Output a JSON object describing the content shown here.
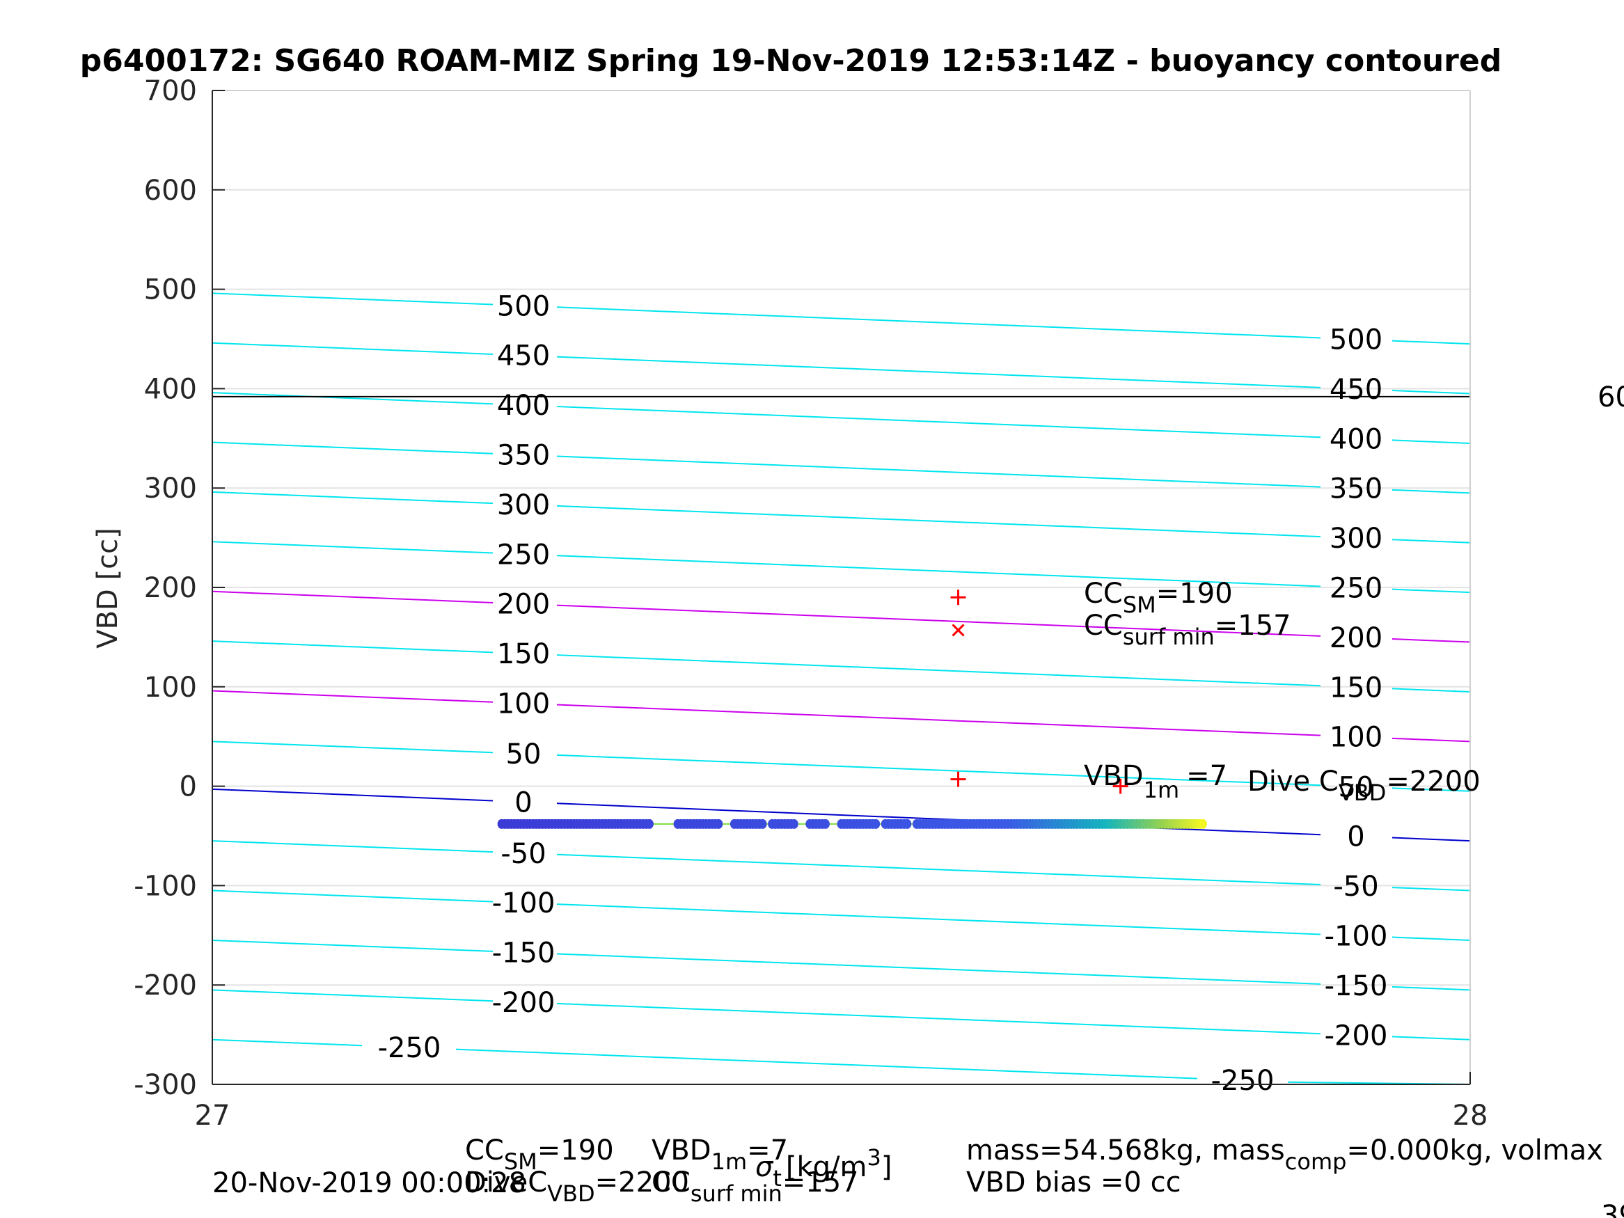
{
  "chart_data": {
    "type": "line",
    "title": "p6400172: SG640 ROAM-MIZ Spring 19-Nov-2019 12:53:14Z - buoyancy contoured",
    "ylabel": "VBD [cc]",
    "xlabel": "",
    "xlim": [
      27,
      28
    ],
    "ylim": [
      -300,
      700
    ],
    "xticks": [
      "27",
      "28"
    ],
    "yticks": [
      "-300",
      "-200",
      "-100",
      "0",
      "100",
      "200",
      "300",
      "400",
      "500",
      "600",
      "700"
    ],
    "grid": true,
    "contours": [
      {
        "level": -250,
        "y_left": -255,
        "y_right": -305,
        "color": "#00e5ee",
        "label": "-250"
      },
      {
        "level": -200,
        "y_left": -205,
        "y_right": -255,
        "color": "#00e5ee",
        "label": "-200"
      },
      {
        "level": -150,
        "y_left": -155,
        "y_right": -205,
        "color": "#00e5ee",
        "label": "-150"
      },
      {
        "level": -100,
        "y_left": -105,
        "y_right": -155,
        "color": "#00e5ee",
        "label": "-100"
      },
      {
        "level": -50,
        "y_left": -55,
        "y_right": -105,
        "color": "#00e5ee",
        "label": "-50"
      },
      {
        "level": 0,
        "y_left": -3,
        "y_right": -55,
        "color": "#0000cc",
        "label": "0"
      },
      {
        "level": 50,
        "y_left": 45,
        "y_right": -5,
        "color": "#00e5ee",
        "label": "50"
      },
      {
        "level": 100,
        "y_left": 96,
        "y_right": 45,
        "color": "#cc00ee",
        "label": "100"
      },
      {
        "level": 150,
        "y_left": 146,
        "y_right": 95,
        "color": "#00e5ee",
        "label": "150"
      },
      {
        "level": 200,
        "y_left": 196,
        "y_right": 145,
        "color": "#cc00ee",
        "label": "200"
      },
      {
        "level": 250,
        "y_left": 246,
        "y_right": 195,
        "color": "#00e5ee",
        "label": "250"
      },
      {
        "level": 300,
        "y_left": 296,
        "y_right": 245,
        "color": "#00e5ee",
        "label": "300"
      },
      {
        "level": 350,
        "y_left": 346,
        "y_right": 295,
        "color": "#00e5ee",
        "label": "350"
      },
      {
        "level": 400,
        "y_left": 396,
        "y_right": 345,
        "color": "#00e5ee",
        "label": "400"
      },
      {
        "level": 450,
        "y_left": 446,
        "y_right": 395,
        "color": "#00e5ee",
        "label": "450"
      },
      {
        "level": 500,
        "y_left": 496,
        "y_right": 445,
        "color": "#00e5ee",
        "label": "500"
      }
    ],
    "vbd_limit_line": 392,
    "data_track": {
      "y": -38,
      "x_start": 27.23,
      "x_end": 27.79,
      "gaps": [
        [
          27.35,
          27.37
        ],
        [
          27.405,
          27.415
        ],
        [
          27.44,
          27.445
        ],
        [
          27.465,
          27.475
        ],
        [
          27.49,
          27.5
        ],
        [
          27.53,
          27.535
        ],
        [
          27.555,
          27.56
        ]
      ],
      "low_color": "#3b3bd6",
      "high_color": "#f9f920"
    },
    "markers": [
      {
        "symbol": "+",
        "x": 27.593,
        "y": 190,
        "color": "#ff0000"
      },
      {
        "symbol": "x",
        "x": 27.593,
        "y": 157,
        "color": "#ff0000"
      },
      {
        "symbol": "+",
        "x": 27.593,
        "y": 7,
        "color": "#ff0000"
      },
      {
        "symbol": "+",
        "x": 27.722,
        "y": 0,
        "color": "#ff0000"
      }
    ],
    "annotations": {
      "cc_sm": {
        "prefix": "CC",
        "sub": "SM",
        "suffix": "=190"
      },
      "cc_surf_min": {
        "prefix": "CC",
        "sub": "surf min",
        "suffix": "=157"
      },
      "vbd_1m": {
        "prefix": "VBD",
        "sub": "1m",
        "suffix": "=7"
      },
      "dive_c_vbd": {
        "prefix": "Dive C",
        "sub": "VBD",
        "suffix": "=2200"
      },
      "right_clipped_top": "60",
      "right_clipped_bottom": "39"
    }
  },
  "footer": {
    "timestamp": "20-Nov-2019 00:00:28",
    "line1_a": "CC",
    "line1_a_sub": "SM",
    "line1_a_val": "=190",
    "line1_b": "VBD",
    "line1_b_sub": "1m",
    "line1_b_val": "=7",
    "line2_a": "DiveC",
    "line2_a_sub": "VBD",
    "line2_a_val": "=2200",
    "line2_b": "CC",
    "line2_b_sub": "surf min",
    "line2_b_val": "=157",
    "xlabel_sigma": "σ",
    "xlabel_sigma_sub": "t",
    "xlabel_units": "[kg/m",
    "xlabel_units_sup": "3",
    "xlabel_units_end": "]",
    "mass_line_a": "mass=54.568kg, mass",
    "mass_line_sub": "comp",
    "mass_line_b": "=0.000kg, volmax",
    "vbd_bias": "VBD bias =0 cc"
  }
}
